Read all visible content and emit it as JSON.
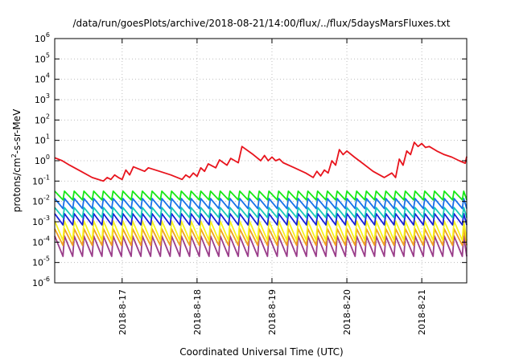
{
  "chart_data": {
    "type": "line",
    "title": "/data/run/goesPlots/archive/2018-08-21/14:00/flux/../flux/5daysMarsFluxes.txt",
    "xlabel": "Coordinated Universal Time (UTC)",
    "ylabel": "protons/cm²-s-sr-MeV",
    "ylabel_parts": {
      "prefix": "protons/cm",
      "sup": "2",
      "suffix": "-s-sr-MeV"
    },
    "x_range_days": [
      16.1,
      21.6
    ],
    "y_scale": "log",
    "ylim": [
      1e-06,
      1000000.0
    ],
    "grid": true,
    "x_ticks": [
      {
        "label": "2018-8-17",
        "day": 17
      },
      {
        "label": "2018-8-18",
        "day": 18
      },
      {
        "label": "2018-8-19",
        "day": 19
      },
      {
        "label": "2018-8-20",
        "day": 20
      },
      {
        "label": "2018-8-21",
        "day": 21
      }
    ],
    "y_ticks": [
      {
        "base": "10",
        "exp": "-6",
        "value": 1e-06
      },
      {
        "base": "10",
        "exp": "-5",
        "value": 1e-05
      },
      {
        "base": "10",
        "exp": "-4",
        "value": 0.0001
      },
      {
        "base": "10",
        "exp": "-3",
        "value": 0.001
      },
      {
        "base": "10",
        "exp": "-2",
        "value": 0.01
      },
      {
        "base": "10",
        "exp": "-1",
        "value": 0.1
      },
      {
        "base": "10",
        "exp": "0",
        "value": 1
      },
      {
        "base": "10",
        "exp": "1",
        "value": 10
      },
      {
        "base": "10",
        "exp": "2",
        "value": 100
      },
      {
        "base": "10",
        "exp": "3",
        "value": 1000
      },
      {
        "base": "10",
        "exp": "4",
        "value": 10000
      },
      {
        "base": "10",
        "exp": "5",
        "value": 100000
      },
      {
        "base": "10",
        "exp": "6",
        "value": 1000000
      }
    ],
    "series": [
      {
        "color": "#e8141d",
        "points": [
          [
            16.1,
            1.4
          ],
          [
            16.2,
            1.0
          ],
          [
            16.3,
            0.6
          ],
          [
            16.45,
            0.3
          ],
          [
            16.6,
            0.15
          ],
          [
            16.75,
            0.1
          ],
          [
            16.8,
            0.15
          ],
          [
            16.85,
            0.12
          ],
          [
            16.9,
            0.2
          ],
          [
            16.95,
            0.15
          ],
          [
            17.0,
            0.12
          ],
          [
            17.05,
            0.35
          ],
          [
            17.1,
            0.2
          ],
          [
            17.15,
            0.5
          ],
          [
            17.3,
            0.3
          ],
          [
            17.35,
            0.45
          ],
          [
            17.5,
            0.3
          ],
          [
            17.65,
            0.2
          ],
          [
            17.8,
            0.12
          ],
          [
            17.85,
            0.2
          ],
          [
            17.9,
            0.15
          ],
          [
            17.95,
            0.25
          ],
          [
            18.0,
            0.17
          ],
          [
            18.05,
            0.45
          ],
          [
            18.1,
            0.3
          ],
          [
            18.15,
            0.7
          ],
          [
            18.25,
            0.45
          ],
          [
            18.3,
            1.1
          ],
          [
            18.4,
            0.6
          ],
          [
            18.45,
            1.3
          ],
          [
            18.55,
            0.8
          ],
          [
            18.6,
            5.0
          ],
          [
            18.75,
            2.0
          ],
          [
            18.85,
            1.0
          ],
          [
            18.9,
            1.8
          ],
          [
            18.95,
            1.0
          ],
          [
            19.0,
            1.5
          ],
          [
            19.05,
            1.0
          ],
          [
            19.1,
            1.2
          ],
          [
            19.15,
            0.8
          ],
          [
            19.3,
            0.45
          ],
          [
            19.45,
            0.25
          ],
          [
            19.55,
            0.15
          ],
          [
            19.6,
            0.3
          ],
          [
            19.65,
            0.18
          ],
          [
            19.7,
            0.35
          ],
          [
            19.75,
            0.25
          ],
          [
            19.8,
            1.0
          ],
          [
            19.85,
            0.6
          ],
          [
            19.9,
            3.5
          ],
          [
            19.95,
            2.0
          ],
          [
            20.0,
            3.0
          ],
          [
            20.1,
            1.5
          ],
          [
            20.2,
            0.8
          ],
          [
            20.35,
            0.3
          ],
          [
            20.5,
            0.15
          ],
          [
            20.6,
            0.25
          ],
          [
            20.65,
            0.15
          ],
          [
            20.7,
            1.2
          ],
          [
            20.75,
            0.6
          ],
          [
            20.8,
            3.0
          ],
          [
            20.85,
            2.0
          ],
          [
            20.9,
            8.0
          ],
          [
            20.95,
            5.0
          ],
          [
            21.0,
            7.0
          ],
          [
            21.05,
            4.5
          ],
          [
            21.1,
            5.0
          ],
          [
            21.2,
            3.0
          ],
          [
            21.3,
            2.0
          ],
          [
            21.4,
            1.5
          ],
          [
            21.5,
            1.0
          ],
          [
            21.58,
            0.75
          ],
          [
            21.6,
            1.6
          ]
        ]
      },
      {
        "color": "#17e817",
        "sawtooth": {
          "high": 0.032,
          "low": 0.012
        }
      },
      {
        "color": "#1a73e8",
        "sawtooth": {
          "high": 0.014,
          "low": 0.0045
        }
      },
      {
        "color": "#18c8b8",
        "sawtooth": {
          "high": 0.005,
          "low": 0.0016
        }
      },
      {
        "color": "#1520d8",
        "sawtooth": {
          "high": 0.0025,
          "low": 0.0007
        }
      },
      {
        "color": "#f7f21c",
        "sawtooth": {
          "high": 0.0011,
          "low": 0.00012
        }
      },
      {
        "color": "#f0a020",
        "sawtooth": {
          "high": 0.00045,
          "low": 7e-05
        }
      },
      {
        "color": "#9a3d8a",
        "sawtooth": {
          "high": 0.0002,
          "low": 2e-05
        }
      }
    ],
    "sawtooth_period_days": 0.13
  }
}
